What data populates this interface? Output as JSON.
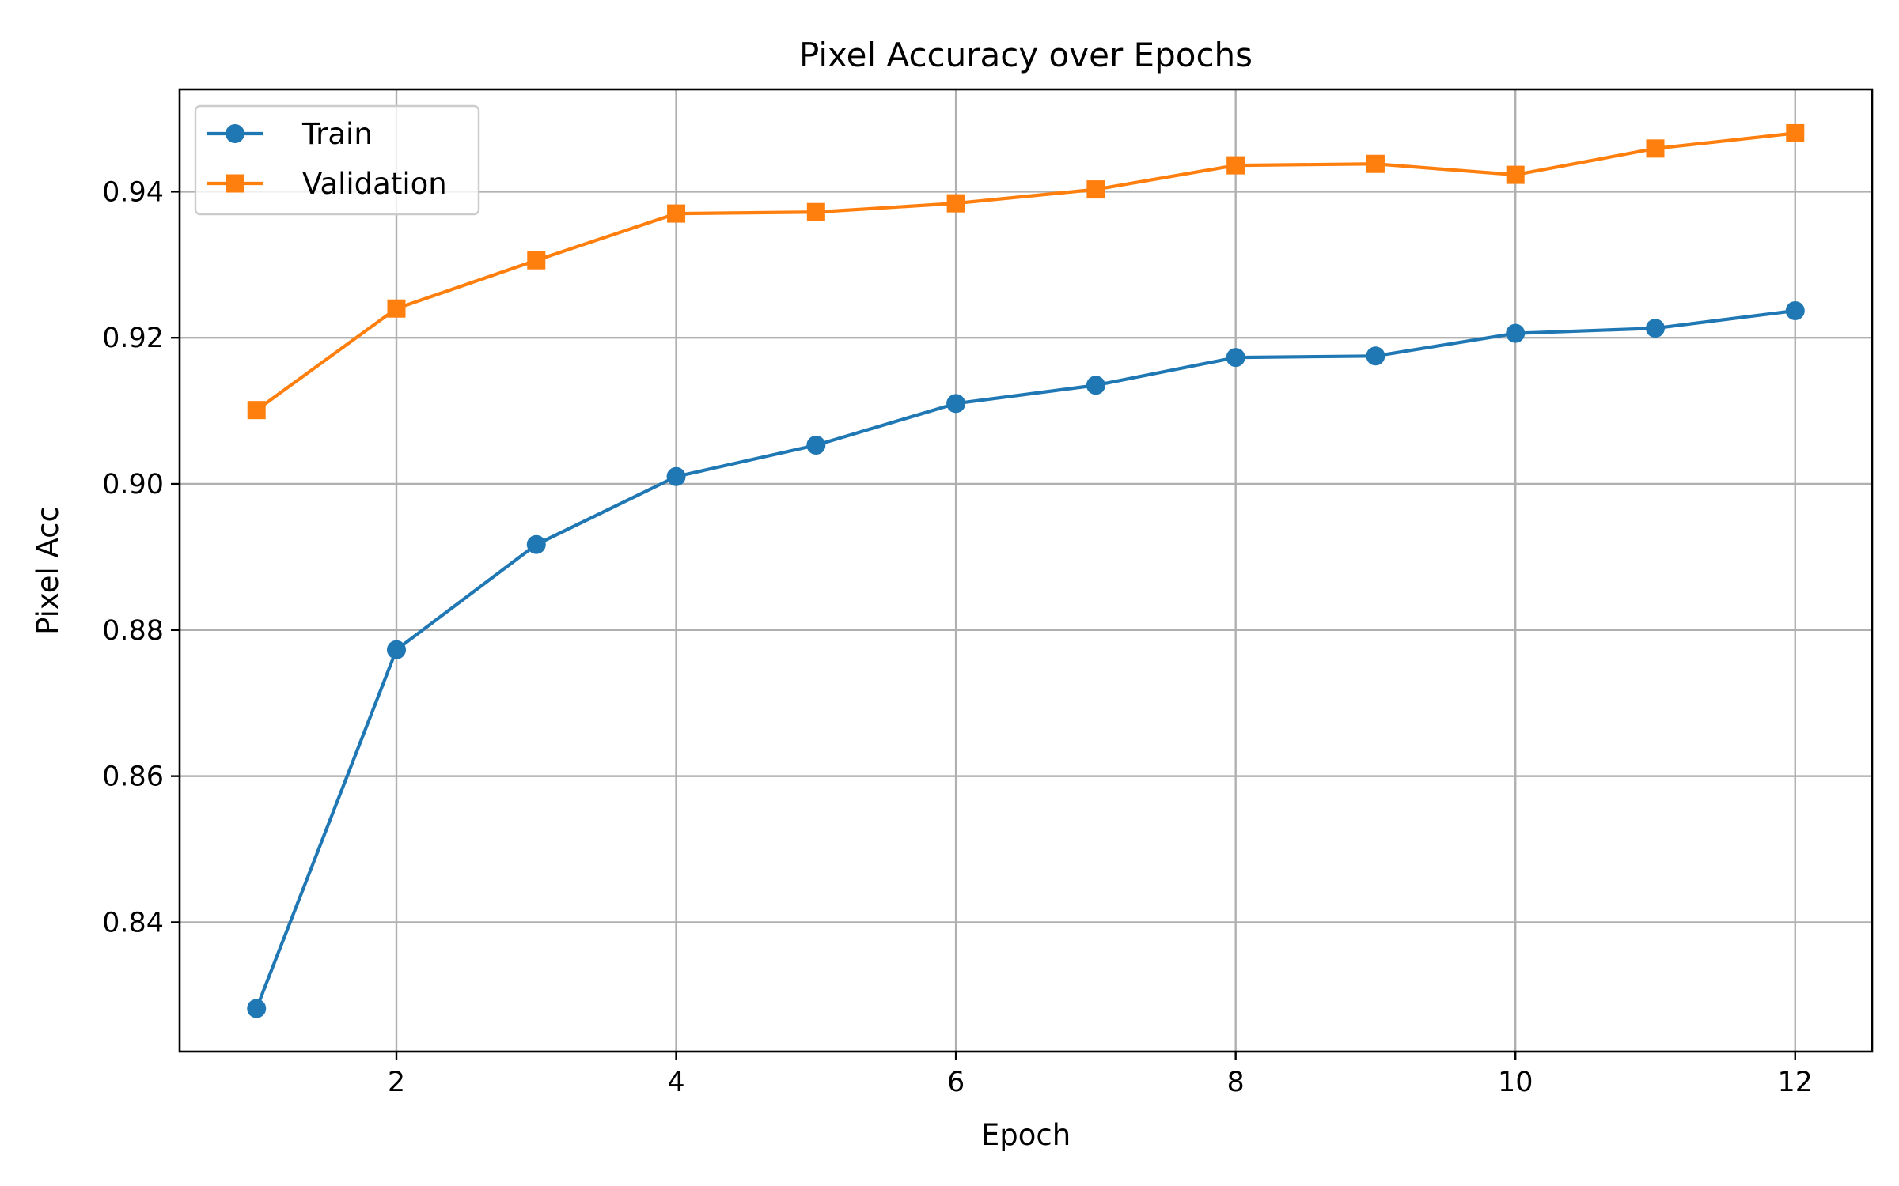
{
  "chart_data": {
    "type": "line",
    "title": "Pixel Accuracy over Epochs",
    "xlabel": "Epoch",
    "ylabel": "Pixel Acc",
    "x": [
      1,
      2,
      3,
      4,
      5,
      6,
      7,
      8,
      9,
      10,
      11,
      12
    ],
    "xlim": [
      0.45,
      12.55
    ],
    "ylim": [
      0.8223,
      0.954
    ],
    "xticks": [
      2,
      4,
      6,
      8,
      10,
      12
    ],
    "xtick_labels": [
      "2",
      "4",
      "6",
      "8",
      "10",
      "12"
    ],
    "yticks": [
      0.84,
      0.86,
      0.88,
      0.9,
      0.92,
      0.94
    ],
    "ytick_labels": [
      "0.84",
      "0.86",
      "0.88",
      "0.90",
      "0.92",
      "0.94"
    ],
    "grid": true,
    "legend_position": "upper-left",
    "series": [
      {
        "name": "Train",
        "color": "#1f77b4",
        "marker": "circle",
        "values": [
          0.8282,
          0.8773,
          0.8917,
          0.901,
          0.9053,
          0.911,
          0.9135,
          0.9173,
          0.9175,
          0.9206,
          0.9213,
          0.9237
        ]
      },
      {
        "name": "Validation",
        "color": "#ff7f0e",
        "marker": "square",
        "values": [
          0.9101,
          0.924,
          0.9306,
          0.937,
          0.9372,
          0.9384,
          0.9403,
          0.9436,
          0.9438,
          0.9423,
          0.9459,
          0.948
        ]
      }
    ]
  }
}
